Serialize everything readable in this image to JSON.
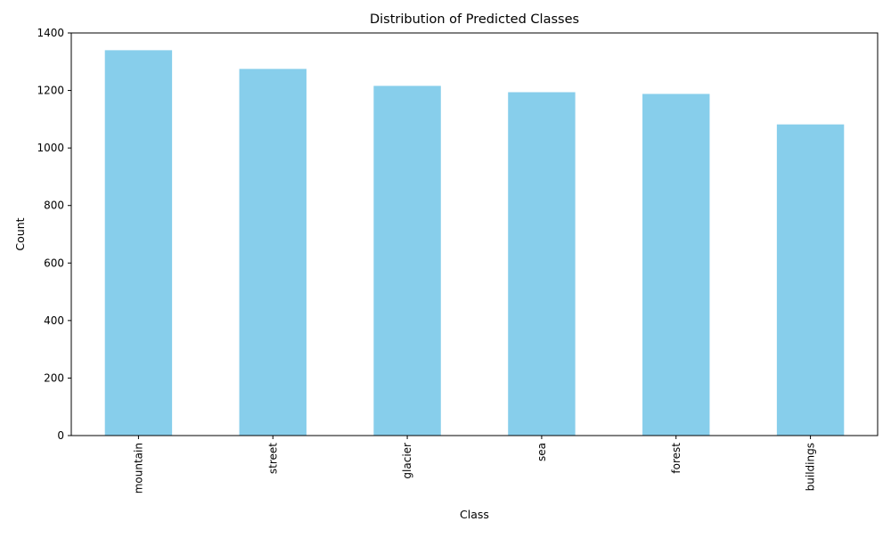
{
  "chart_data": {
    "type": "bar",
    "title": "Distribution of Predicted Classes",
    "xlabel": "Class",
    "ylabel": "Count",
    "categories": [
      "mountain",
      "street",
      "glacier",
      "sea",
      "forest",
      "buildings"
    ],
    "values": [
      1340,
      1275,
      1216,
      1194,
      1188,
      1082
    ],
    "ylim": [
      0,
      1400
    ],
    "yticks": [
      "0",
      "200",
      "400",
      "600",
      "800",
      "1000",
      "1200",
      "1400"
    ],
    "bar_color": "#87CEEB",
    "grid": false,
    "legend": "none"
  }
}
